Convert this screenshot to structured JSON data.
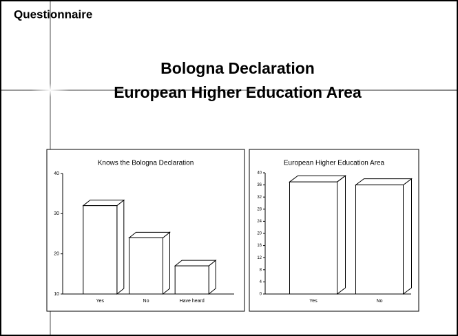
{
  "slide": {
    "label": "Questionnaire",
    "title_lines": [
      "Bologna Declaration",
      "European Higher Education Area"
    ]
  },
  "chart_data": [
    {
      "type": "bar3d",
      "title": "Knows the Bologna Declaration",
      "categories": [
        "Yes",
        "No",
        "Have heard"
      ],
      "values": [
        32,
        24,
        17
      ],
      "color": "#ffffff",
      "ylim": [
        10,
        40
      ],
      "yticks": [
        10,
        20,
        30,
        40
      ]
    },
    {
      "type": "bar3d",
      "title": "European Higher Education Area",
      "categories": [
        "Yes",
        "No"
      ],
      "values": [
        37,
        36
      ],
      "color": "#ffffff",
      "ylim": [
        0,
        40
      ],
      "yticks": [
        0,
        4,
        8,
        12,
        16,
        20,
        24,
        28,
        32,
        36,
        40
      ]
    }
  ]
}
